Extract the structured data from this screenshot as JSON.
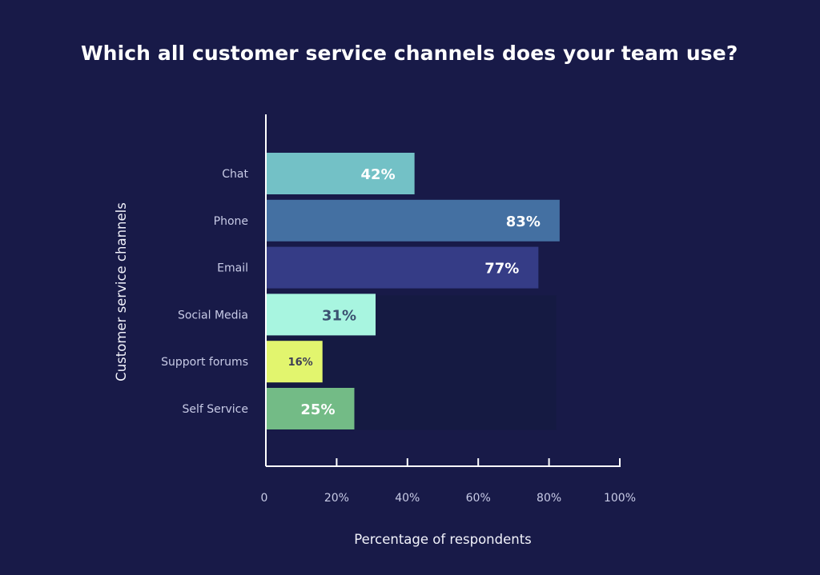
{
  "chart_data": {
    "type": "bar",
    "orientation": "horizontal",
    "title": "Which all customer service channels does your team use?",
    "xlabel": "Percentage of respondents",
    "ylabel": "Customer service channels",
    "categories": [
      "Chat",
      "Phone",
      "Email",
      "Social Media",
      "Support forums",
      "Self Service"
    ],
    "values": [
      42,
      83,
      77,
      31,
      16,
      25
    ],
    "value_labels": [
      "42%",
      "83%",
      "77%",
      "31%",
      "16%",
      "25%"
    ],
    "bar_colors": [
      "#73c1c6",
      "#4470a2",
      "#353c86",
      "#a8f5e0",
      "#e2f56e",
      "#73bb86"
    ],
    "label_colors": [
      "#ffffff",
      "#ffffff",
      "#ffffff",
      "#3b5170",
      "#3e3e56",
      "#ffffff"
    ],
    "xlim": [
      0,
      100
    ],
    "xticks": [
      0,
      20,
      40,
      60,
      80,
      100
    ],
    "xtick_labels": [
      "0",
      "20%",
      "40%",
      "60%",
      "80%",
      "100%"
    ],
    "grid": false,
    "legend": "none",
    "colors": {
      "background": "#181a48",
      "axis": "#ffffff",
      "text": "#c8cbe6"
    }
  }
}
